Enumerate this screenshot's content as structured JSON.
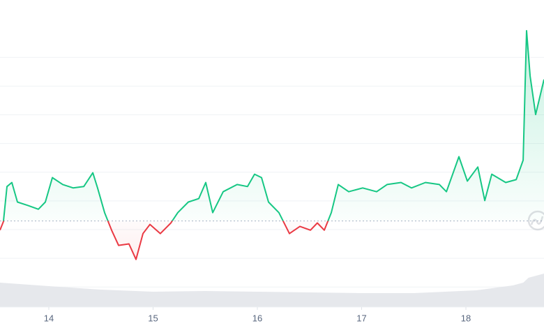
{
  "chart_data": {
    "type": "line",
    "x": [
      13.532,
      13.565,
      13.599,
      13.646,
      13.699,
      13.8,
      13.9,
      13.967,
      14.034,
      14.134,
      14.234,
      14.335,
      14.422,
      14.468,
      14.535,
      14.602,
      14.669,
      14.769,
      14.836,
      14.903,
      14.97,
      15.07,
      15.171,
      15.237,
      15.338,
      15.438,
      15.505,
      15.572,
      15.672,
      15.806,
      15.906,
      15.973,
      16.04,
      16.107,
      16.207,
      16.308,
      16.408,
      16.509,
      16.575,
      16.642,
      16.709,
      16.776,
      16.876,
      17.01,
      17.144,
      17.244,
      17.378,
      17.478,
      17.612,
      17.746,
      17.813,
      17.933,
      18.014,
      18.114,
      18.181,
      18.248,
      18.382,
      18.482,
      18.549,
      18.582,
      18.616,
      18.669,
      18.749
    ],
    "values": [
      19.8,
      22.8,
      35,
      36.4,
      29.6,
      28.4,
      27.1,
      29.6,
      38.1,
      35.7,
      34.5,
      35,
      39.8,
      34.5,
      25.9,
      19.8,
      14.5,
      15,
      9.6,
      18.6,
      21.8,
      18.6,
      22.3,
      25.9,
      29.6,
      30.8,
      36.4,
      25.9,
      33.2,
      35.7,
      35,
      39.3,
      38.1,
      29.6,
      25.9,
      18.6,
      21.1,
      19.8,
      22.3,
      19.8,
      25.9,
      35.7,
      33.2,
      34.5,
      33.2,
      35.7,
      36.4,
      34.5,
      36.4,
      35.7,
      33.2,
      45.4,
      36.9,
      41.8,
      30.1,
      39.3,
      36.4,
      37.4,
      44.2,
      89.3,
      73.5,
      60.1,
      72.3
    ],
    "baseline": 23,
    "up_color": "#16c784",
    "down_color": "#ea3943",
    "xlim": [
      13.532,
      18.749
    ],
    "xticks": [
      14,
      15,
      16,
      17,
      18
    ],
    "ylim": [
      -7,
      100
    ],
    "gridlines": [
      0,
      10,
      20,
      30,
      40,
      50,
      60,
      70,
      80
    ],
    "grid": true,
    "volume": {
      "x": [
        13.532,
        14.0,
        14.5,
        15.0,
        15.5,
        16.0,
        16.5,
        17.0,
        17.5,
        17.8,
        18.1,
        18.3,
        18.45,
        18.55,
        18.6,
        18.749
      ],
      "values": [
        35,
        30,
        25,
        22,
        23,
        22,
        21,
        20,
        20,
        22,
        24,
        28,
        31,
        35,
        42,
        48
      ],
      "vlim": [
        0,
        100
      ],
      "color": "#e6e8ec"
    }
  }
}
